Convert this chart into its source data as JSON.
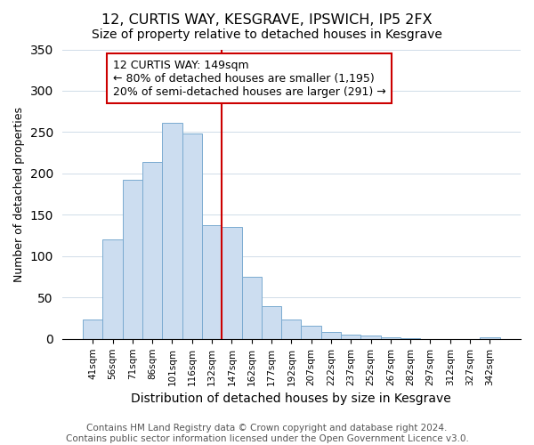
{
  "title": "12, CURTIS WAY, KESGRAVE, IPSWICH, IP5 2FX",
  "subtitle": "Size of property relative to detached houses in Kesgrave",
  "xlabel": "Distribution of detached houses by size in Kesgrave",
  "ylabel": "Number of detached properties",
  "bar_labels": [
    "41sqm",
    "56sqm",
    "71sqm",
    "86sqm",
    "101sqm",
    "116sqm",
    "132sqm",
    "147sqm",
    "162sqm",
    "177sqm",
    "192sqm",
    "207sqm",
    "222sqm",
    "237sqm",
    "252sqm",
    "267sqm",
    "282sqm",
    "297sqm",
    "312sqm",
    "327sqm",
    "342sqm"
  ],
  "bar_values": [
    24,
    120,
    192,
    214,
    261,
    248,
    137,
    135,
    75,
    40,
    24,
    16,
    8,
    5,
    4,
    2,
    1,
    0,
    0,
    0,
    2
  ],
  "bar_color": "#ccddf0",
  "bar_edge_color": "#7aaad0",
  "vline_color": "#cc0000",
  "ylim": [
    0,
    350
  ],
  "annotation_title": "12 CURTIS WAY: 149sqm",
  "annotation_line1": "← 80% of detached houses are smaller (1,195)",
  "annotation_line2": "20% of semi-detached houses are larger (291) →",
  "annotation_box_color": "#ffffff",
  "annotation_box_edge": "#cc0000",
  "footer_line1": "Contains HM Land Registry data © Crown copyright and database right 2024.",
  "footer_line2": "Contains public sector information licensed under the Open Government Licence v3.0.",
  "title_fontsize": 11.5,
  "subtitle_fontsize": 10,
  "xlabel_fontsize": 10,
  "ylabel_fontsize": 9,
  "tick_fontsize": 7.5,
  "footer_fontsize": 7.5,
  "annotation_fontsize": 9
}
